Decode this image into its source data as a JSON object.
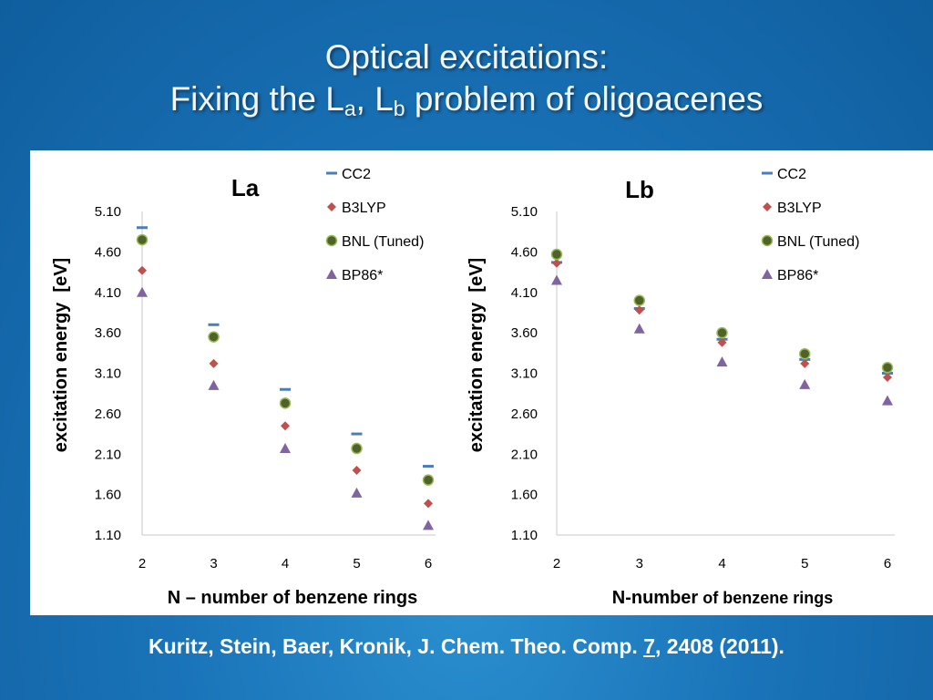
{
  "slide": {
    "title_line1": "Optical excitations:",
    "title_line2_a": "Fixing the L",
    "title_sub_a": "a",
    "title_line2_b": ", L",
    "title_sub_b": "b",
    "title_line2_c": " problem of oligoacenes",
    "citation_a": "Kuritz, Stein, Baer, Kronik, J. Chem. Theo. Comp. ",
    "citation_vol": "7",
    "citation_b": ", 2408 (2011)."
  },
  "chart_data": [
    {
      "type": "scatter",
      "title": "La",
      "xlabel": "N – number of benzene rings",
      "ylabel": "excitation energy  [eV]",
      "x": [
        2,
        3,
        4,
        5,
        6
      ],
      "ylim": [
        1.1,
        5.1
      ],
      "yticks": [
        "1.10",
        "1.60",
        "2.10",
        "2.60",
        "3.10",
        "3.60",
        "4.10",
        "4.60",
        "5.10"
      ],
      "xticks": [
        "2",
        "3",
        "4",
        "5",
        "6"
      ],
      "legend_position": "top-right",
      "series": [
        {
          "name": "CC2",
          "marker": "dash",
          "color": "#4a7ebb",
          "values": [
            4.9,
            3.7,
            2.9,
            2.35,
            1.95
          ]
        },
        {
          "name": "B3LYP",
          "marker": "diamond",
          "color": "#c0504d",
          "values": [
            4.37,
            3.22,
            2.45,
            1.9,
            1.49
          ]
        },
        {
          "name": "BNL (Tuned)",
          "marker": "circle",
          "color": "#4f6228",
          "values": [
            4.75,
            3.55,
            2.73,
            2.17,
            1.78
          ]
        },
        {
          "name": "BP86*",
          "marker": "triangle",
          "color": "#8064a2",
          "values": [
            4.1,
            2.95,
            2.17,
            1.62,
            1.22
          ]
        }
      ]
    },
    {
      "type": "scatter",
      "title": "Lb",
      "xlabel_bold": "N-number",
      "xlabel_rest": " of benzene rings",
      "ylabel": "excitation energy  [eV]",
      "x": [
        2,
        3,
        4,
        5,
        6
      ],
      "ylim": [
        1.1,
        5.1
      ],
      "yticks": [
        "1.10",
        "1.60",
        "2.10",
        "2.60",
        "3.10",
        "3.60",
        "4.10",
        "4.60",
        "5.10"
      ],
      "xticks": [
        "2",
        "3",
        "4",
        "5",
        "6"
      ],
      "legend_position": "top-right",
      "series": [
        {
          "name": "CC2",
          "marker": "dash",
          "color": "#4a7ebb",
          "values": [
            4.47,
            3.9,
            3.52,
            3.27,
            3.1
          ]
        },
        {
          "name": "B3LYP",
          "marker": "diamond",
          "color": "#c0504d",
          "values": [
            4.46,
            3.88,
            3.48,
            3.22,
            3.05
          ]
        },
        {
          "name": "BNL (Tuned)",
          "marker": "circle",
          "color": "#4f6228",
          "values": [
            4.57,
            4.0,
            3.6,
            3.34,
            3.17
          ]
        },
        {
          "name": "BP86*",
          "marker": "triangle",
          "color": "#8064a2",
          "values": [
            4.25,
            3.65,
            3.24,
            2.96,
            2.76
          ]
        }
      ]
    }
  ]
}
